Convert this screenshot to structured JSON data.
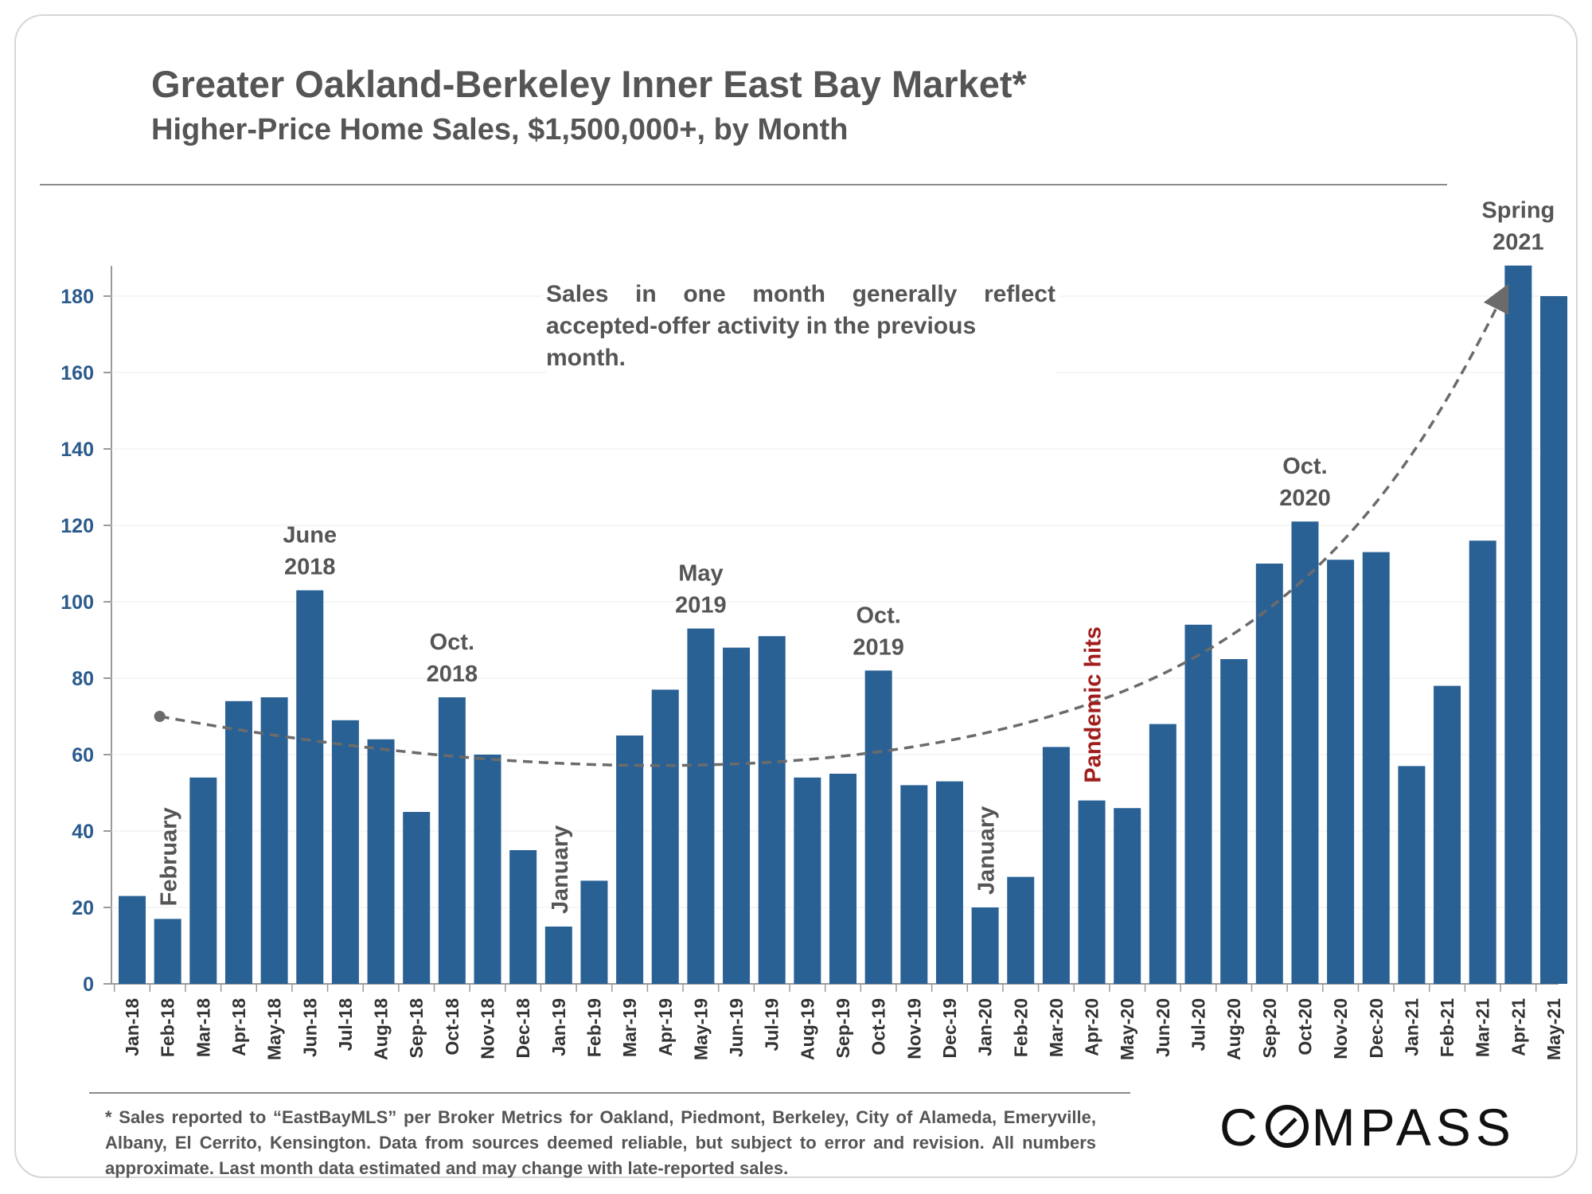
{
  "title": "Greater Oakland-Berkeley Inner East Bay Market*",
  "subtitle": "Higher-Price Home Sales, $1,500,000+, by Month",
  "note": "Sales in one month generally reflect accepted-offer activity in the previous month.",
  "note_line1": "Sales in one month generally reflect",
  "note_line2": "accepted-offer activity in the previous month.",
  "footnote": "* Sales reported to “EastBayMLS” per Broker Metrics for Oakland, Piedmont, Berkeley, City of Alameda, Emeryville, Albany, El Cerrito, Kensington. Data from sources deemed reliable, but subject to error and revision. All numbers approximate. Last month data estimated and may change with late-reported sales.",
  "logo": {
    "pre": "C",
    "post": "MPASS"
  },
  "colors": {
    "bar": "#2a6195",
    "axis_label": "#2a5a8c",
    "annotation": "#555555",
    "pandemic": "#a11d1d",
    "trend": "#6b6b6b"
  },
  "chart_data": {
    "type": "bar",
    "title": "Greater Oakland-Berkeley Inner East Bay Market*",
    "subtitle": "Higher-Price Home Sales, $1,500,000+, by Month",
    "xlabel": "",
    "ylabel": "",
    "ylim": [
      0,
      188
    ],
    "yticks": [
      0,
      20,
      40,
      60,
      80,
      100,
      120,
      140,
      160,
      180
    ],
    "grid": true,
    "categories": [
      "Jan-18",
      "Feb-18",
      "Mar-18",
      "Apr-18",
      "May-18",
      "Jun-18",
      "Jul-18",
      "Aug-18",
      "Sep-18",
      "Oct-18",
      "Nov-18",
      "Dec-18",
      "Jan-19",
      "Feb-19",
      "Mar-19",
      "Apr-19",
      "May-19",
      "Jun-19",
      "Jul-19",
      "Aug-19",
      "Sep-19",
      "Oct-19",
      "Nov-19",
      "Dec-19",
      "Jan-20",
      "Feb-20",
      "Mar-20",
      "Apr-20",
      "May-20",
      "Jun-20",
      "Jul-20",
      "Aug-20",
      "Sep-20",
      "Oct-20",
      "Nov-20",
      "Dec-20",
      "Jan-21",
      "Feb-21",
      "Mar-21",
      "Apr-21",
      "May-21"
    ],
    "values": [
      23,
      17,
      54,
      74,
      75,
      103,
      69,
      64,
      45,
      75,
      60,
      35,
      15,
      27,
      65,
      77,
      93,
      88,
      91,
      54,
      55,
      82,
      52,
      53,
      20,
      28,
      62,
      48,
      46,
      68,
      94,
      85,
      110,
      121,
      111,
      113,
      57,
      78,
      116,
      188,
      180
    ],
    "annotations": [
      {
        "category": "Feb-18",
        "text": "February",
        "rotated": true
      },
      {
        "category": "Jun-18",
        "text": "June 2018",
        "lines": [
          "June",
          "2018"
        ]
      },
      {
        "category": "Oct-18",
        "text": "Oct. 2018",
        "lines": [
          "Oct.",
          "2018"
        ]
      },
      {
        "category": "Jan-19",
        "text": "January",
        "rotated": true
      },
      {
        "category": "May-19",
        "text": "May 2019",
        "lines": [
          "May",
          "2019"
        ]
      },
      {
        "category": "Oct-19",
        "text": "Oct. 2019",
        "lines": [
          "Oct.",
          "2019"
        ]
      },
      {
        "category": "Jan-20",
        "text": "January",
        "rotated": true
      },
      {
        "category": "Apr-20",
        "text": "Pandemic hits",
        "rotated": true
      },
      {
        "category": "Oct-20",
        "text": "Oct. 2020",
        "lines": [
          "Oct.",
          "2020"
        ]
      },
      {
        "category": "Apr-21",
        "text": "Spring 2021",
        "lines": [
          "Spring",
          "2021"
        ]
      }
    ],
    "trend_line": {
      "style": "dashed",
      "from": {
        "category": "Feb-18",
        "value": 70
      },
      "to": {
        "category": "Apr-21",
        "value": 180
      },
      "arrow": true
    }
  }
}
